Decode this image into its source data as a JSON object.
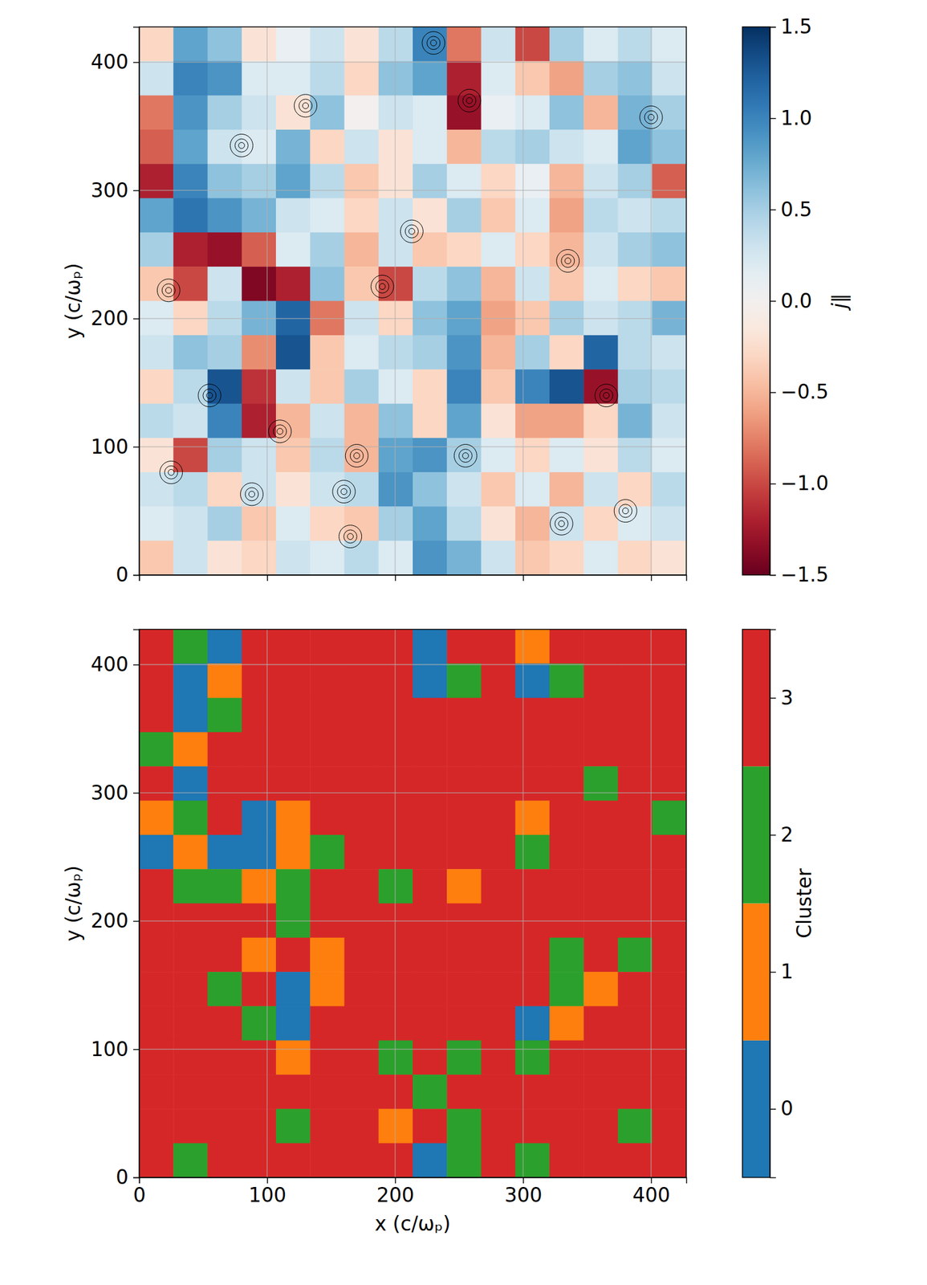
{
  "chart_data": [
    {
      "type": "heatmap",
      "ylabel": "y (c/ωₚ)",
      "xlim": [
        0,
        427.5
      ],
      "ylim": [
        0,
        427.5
      ],
      "xticks": [
        0,
        100,
        200,
        300,
        400
      ],
      "yticks": [
        0,
        100,
        200,
        300,
        400
      ],
      "grid": true,
      "tick_labels": "y",
      "x": [
        13.36,
        40.08,
        66.8,
        93.52,
        120.23,
        146.95,
        173.67,
        200.39,
        227.11,
        253.83,
        280.55,
        307.27,
        333.98,
        360.7,
        387.42,
        414.14
      ],
      "y": [
        414.14,
        387.42,
        360.7,
        333.98,
        307.27,
        280.55,
        253.83,
        227.11,
        200.39,
        173.67,
        146.95,
        120.23,
        93.52,
        66.8,
        40.08,
        13.36
      ],
      "z": [
        [
          -0.3,
          0.8,
          0.6,
          -0.2,
          0.1,
          0.3,
          -0.2,
          0.4,
          1.0,
          -0.8,
          0.3,
          -1.0,
          0.5,
          0.2,
          0.4,
          0.2
        ],
        [
          0.3,
          1.0,
          0.9,
          0.2,
          0.2,
          0.4,
          -0.3,
          0.6,
          0.8,
          -1.2,
          0.2,
          -0.4,
          -0.6,
          0.5,
          0.6,
          0.3
        ],
        [
          -0.8,
          0.9,
          0.5,
          0.3,
          -0.2,
          0.6,
          0.0,
          0.3,
          0.2,
          -1.3,
          0.1,
          0.2,
          0.6,
          -0.5,
          0.7,
          0.5
        ],
        [
          -0.9,
          0.8,
          0.3,
          0.2,
          0.7,
          -0.3,
          0.3,
          -0.2,
          0.2,
          -0.5,
          0.4,
          0.5,
          0.3,
          0.2,
          0.8,
          0.6
        ],
        [
          -1.2,
          1.0,
          0.6,
          0.5,
          0.8,
          0.4,
          -0.4,
          -0.2,
          0.5,
          0.2,
          -0.3,
          0.1,
          -0.5,
          0.3,
          0.5,
          -0.9
        ],
        [
          0.8,
          1.1,
          0.9,
          0.7,
          0.3,
          0.2,
          -0.3,
          0.3,
          -0.2,
          0.5,
          -0.4,
          0.2,
          -0.6,
          0.4,
          0.3,
          0.4
        ],
        [
          0.5,
          -1.2,
          -1.3,
          -0.9,
          0.2,
          0.5,
          -0.5,
          0.3,
          -0.4,
          -0.3,
          0.2,
          -0.3,
          -0.5,
          0.3,
          0.5,
          0.6
        ],
        [
          -0.4,
          -1.0,
          0.3,
          -1.4,
          -1.2,
          0.6,
          -0.4,
          -1.0,
          0.4,
          0.6,
          -0.5,
          0.3,
          -0.4,
          0.2,
          -0.3,
          -0.4
        ],
        [
          0.2,
          -0.3,
          0.4,
          0.7,
          1.2,
          -0.8,
          0.3,
          -0.3,
          0.6,
          0.8,
          -0.6,
          -0.4,
          0.5,
          0.3,
          0.4,
          0.7
        ],
        [
          0.3,
          0.6,
          0.5,
          -0.7,
          1.3,
          -0.4,
          0.2,
          0.4,
          0.5,
          0.9,
          -0.5,
          0.5,
          -0.3,
          1.2,
          0.4,
          0.3
        ],
        [
          -0.3,
          0.4,
          1.3,
          -1.1,
          0.3,
          -0.4,
          0.5,
          0.2,
          -0.3,
          1.0,
          -0.4,
          1.0,
          1.3,
          -1.3,
          0.5,
          0.4
        ],
        [
          0.4,
          0.3,
          1.0,
          -1.2,
          -0.5,
          0.3,
          -0.5,
          0.6,
          -0.3,
          0.8,
          -0.2,
          -0.6,
          -0.6,
          -0.3,
          0.7,
          0.3
        ],
        [
          -0.2,
          -1.0,
          0.5,
          0.3,
          -0.4,
          0.4,
          -0.5,
          0.8,
          0.9,
          0.5,
          0.2,
          -0.3,
          0.2,
          -0.2,
          0.4,
          0.2
        ],
        [
          0.3,
          0.4,
          -0.3,
          0.3,
          -0.2,
          0.3,
          0.4,
          0.9,
          0.6,
          0.3,
          -0.4,
          0.2,
          -0.5,
          0.3,
          -0.3,
          0.4
        ],
        [
          0.2,
          0.3,
          0.5,
          -0.4,
          0.2,
          -0.3,
          -0.4,
          0.5,
          0.8,
          0.4,
          -0.2,
          -0.5,
          0.3,
          -0.3,
          0.2,
          0.3
        ],
        [
          -0.4,
          0.3,
          -0.2,
          -0.3,
          0.3,
          0.2,
          0.4,
          0.2,
          0.9,
          0.7,
          0.3,
          -0.4,
          -0.3,
          0.2,
          -0.3,
          -0.2
        ]
      ],
      "colorbar": {
        "label": "j∥",
        "range": [
          -1.5,
          1.5
        ],
        "ticks": [
          {
            "value": -1.5,
            "label": "−1.5"
          },
          {
            "value": -1.0,
            "label": "−1.0"
          },
          {
            "value": -0.5,
            "label": "−0.5"
          },
          {
            "value": 0,
            "label": "0.0"
          },
          {
            "value": 0.5,
            "label": "0.5"
          },
          {
            "value": 1.0,
            "label": "1.0"
          },
          {
            "value": 1.5,
            "label": "1.5"
          }
        ]
      },
      "o_points": {
        "x": [
          80,
          258,
          190,
          365,
          110,
          25,
          55,
          400,
          213,
          335,
          380,
          330,
          88,
          165,
          160,
          230,
          130,
          255,
          170,
          23
        ],
        "y": [
          335,
          370,
          225,
          140,
          112,
          80,
          140,
          357,
          268,
          245,
          50,
          40,
          63,
          30,
          65,
          415,
          366,
          93,
          93,
          222
        ]
      }
    },
    {
      "type": "heatmap",
      "xlabel": "x (c/ωₚ)",
      "ylabel": "y (c/ωₚ)",
      "xlim": [
        0,
        427.5
      ],
      "ylim": [
        0,
        427.5
      ],
      "xticks": [
        0,
        100,
        200,
        300,
        400
      ],
      "yticks": [
        0,
        100,
        200,
        300,
        400
      ],
      "grid": true,
      "x": [
        13.36,
        40.08,
        66.8,
        93.52,
        120.23,
        146.95,
        173.67,
        200.39,
        227.11,
        253.83,
        280.55,
        307.27,
        333.98,
        360.7,
        387.42,
        414.14
      ],
      "y": [
        414.14,
        387.42,
        360.7,
        333.98,
        307.27,
        280.55,
        253.83,
        227.11,
        200.39,
        173.67,
        146.95,
        120.23,
        93.52,
        66.8,
        40.08,
        13.36
      ],
      "z": [
        [
          3,
          2,
          0,
          3,
          3,
          3,
          3,
          3,
          0,
          3,
          3,
          1,
          3,
          3,
          3,
          3
        ],
        [
          3,
          0,
          1,
          3,
          3,
          3,
          3,
          3,
          0,
          2,
          3,
          0,
          2,
          3,
          3,
          3
        ],
        [
          3,
          0,
          2,
          3,
          3,
          3,
          3,
          3,
          3,
          3,
          3,
          3,
          3,
          3,
          3,
          3
        ],
        [
          2,
          1,
          3,
          3,
          3,
          3,
          3,
          3,
          3,
          3,
          3,
          3,
          3,
          3,
          3,
          3
        ],
        [
          3,
          0,
          3,
          3,
          3,
          3,
          3,
          3,
          3,
          3,
          3,
          3,
          3,
          2,
          3,
          3
        ],
        [
          1,
          2,
          3,
          0,
          1,
          3,
          3,
          3,
          3,
          3,
          3,
          1,
          3,
          3,
          3,
          2
        ],
        [
          0,
          1,
          0,
          0,
          1,
          2,
          3,
          3,
          3,
          3,
          3,
          2,
          3,
          3,
          3,
          3
        ],
        [
          3,
          2,
          2,
          1,
          2,
          3,
          3,
          2,
          3,
          1,
          3,
          3,
          3,
          3,
          3,
          3
        ],
        [
          3,
          3,
          3,
          3,
          2,
          3,
          3,
          3,
          3,
          3,
          3,
          3,
          3,
          3,
          3,
          3
        ],
        [
          3,
          3,
          3,
          1,
          3,
          1,
          3,
          3,
          3,
          3,
          3,
          3,
          2,
          3,
          2,
          3
        ],
        [
          3,
          3,
          2,
          3,
          0,
          1,
          3,
          3,
          3,
          3,
          3,
          3,
          2,
          1,
          3,
          3
        ],
        [
          3,
          3,
          3,
          2,
          0,
          3,
          3,
          3,
          3,
          3,
          3,
          0,
          1,
          3,
          3,
          3
        ],
        [
          3,
          3,
          3,
          3,
          1,
          3,
          3,
          2,
          3,
          2,
          3,
          2,
          3,
          3,
          3,
          3
        ],
        [
          3,
          3,
          3,
          3,
          3,
          3,
          3,
          3,
          2,
          3,
          3,
          3,
          3,
          3,
          3,
          3
        ],
        [
          3,
          3,
          3,
          3,
          2,
          3,
          3,
          1,
          3,
          2,
          3,
          3,
          3,
          3,
          2,
          3
        ],
        [
          3,
          2,
          3,
          3,
          3,
          3,
          3,
          3,
          0,
          2,
          3,
          2,
          3,
          3,
          3,
          3
        ]
      ],
      "colorbar": {
        "label": "Cluster",
        "range": [
          -0.5,
          3.5
        ],
        "ticks": [
          0,
          1,
          2,
          3
        ],
        "colors": [
          "#1f77b4",
          "#ff7f0e",
          "#2ca02c",
          "#d62728"
        ]
      }
    }
  ]
}
